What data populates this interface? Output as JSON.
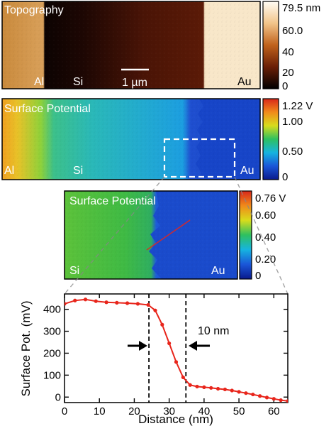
{
  "panel_topography": {
    "title": "Topography",
    "region_labels": [
      "Al",
      "Si",
      "Au"
    ],
    "scalebar_label": "1 µm",
    "colorbar": {
      "unit_label": "79.5 nm",
      "ticks": [
        "60.0",
        "40",
        "20",
        "0"
      ],
      "range": [
        0,
        79.5
      ],
      "colors": [
        "#000000",
        "#6a1f06",
        "#c0621c",
        "#f2c48a",
        "#fffdf5"
      ]
    }
  },
  "panel_potential_large": {
    "title": "Surface Potential",
    "region_labels": [
      "Al",
      "Si",
      "Au"
    ],
    "colorbar": {
      "unit_label": "1.22 V",
      "ticks": [
        "1.00",
        "0.50",
        "0"
      ],
      "range": [
        0,
        1.22
      ],
      "colors": [
        "#0a1a8c",
        "#1a56d8",
        "#16b4e0",
        "#2ec060",
        "#d8dc1c",
        "#f08a1a",
        "#d8281a"
      ]
    }
  },
  "panel_potential_zoom": {
    "title": "Surface Potential",
    "region_labels": [
      "Si",
      "Au"
    ],
    "colorbar": {
      "unit_label": "0.76 V",
      "ticks": [
        "0.60",
        "0.40",
        "0.20",
        "0"
      ],
      "range": [
        0,
        0.76
      ],
      "colors": [
        "#0a1a8c",
        "#1a56d8",
        "#16b4e0",
        "#2ec060",
        "#d8dc1c",
        "#f08a1a",
        "#d8281a"
      ]
    }
  },
  "chart_data": {
    "type": "line",
    "xlabel": "Distance (nm)",
    "ylabel": "Surface Pot. (mV)",
    "xlim": [
      0,
      64
    ],
    "ylim": [
      -25,
      470
    ],
    "xticks": [
      "0",
      "10",
      "20",
      "30",
      "40",
      "50",
      "60"
    ],
    "yticks": [
      "0",
      "100",
      "200",
      "300",
      "400"
    ],
    "annotation": "10 nm",
    "dashed_x": [
      24.2,
      34.8
    ],
    "series": [
      {
        "color": "#e8251b",
        "x": [
          0,
          3,
          6,
          9,
          12,
          15,
          18,
          21,
          24,
          26,
          28,
          30,
          32,
          34,
          36,
          38,
          40,
          42,
          44,
          46,
          48,
          50,
          52,
          54,
          56,
          58,
          60,
          62,
          64
        ],
        "y": [
          425,
          440,
          445,
          437,
          432,
          430,
          428,
          425,
          420,
          395,
          330,
          245,
          160,
          90,
          55,
          48,
          45,
          42,
          38,
          35,
          30,
          24,
          18,
          12,
          5,
          -2,
          -8,
          -14,
          -18
        ]
      }
    ]
  }
}
